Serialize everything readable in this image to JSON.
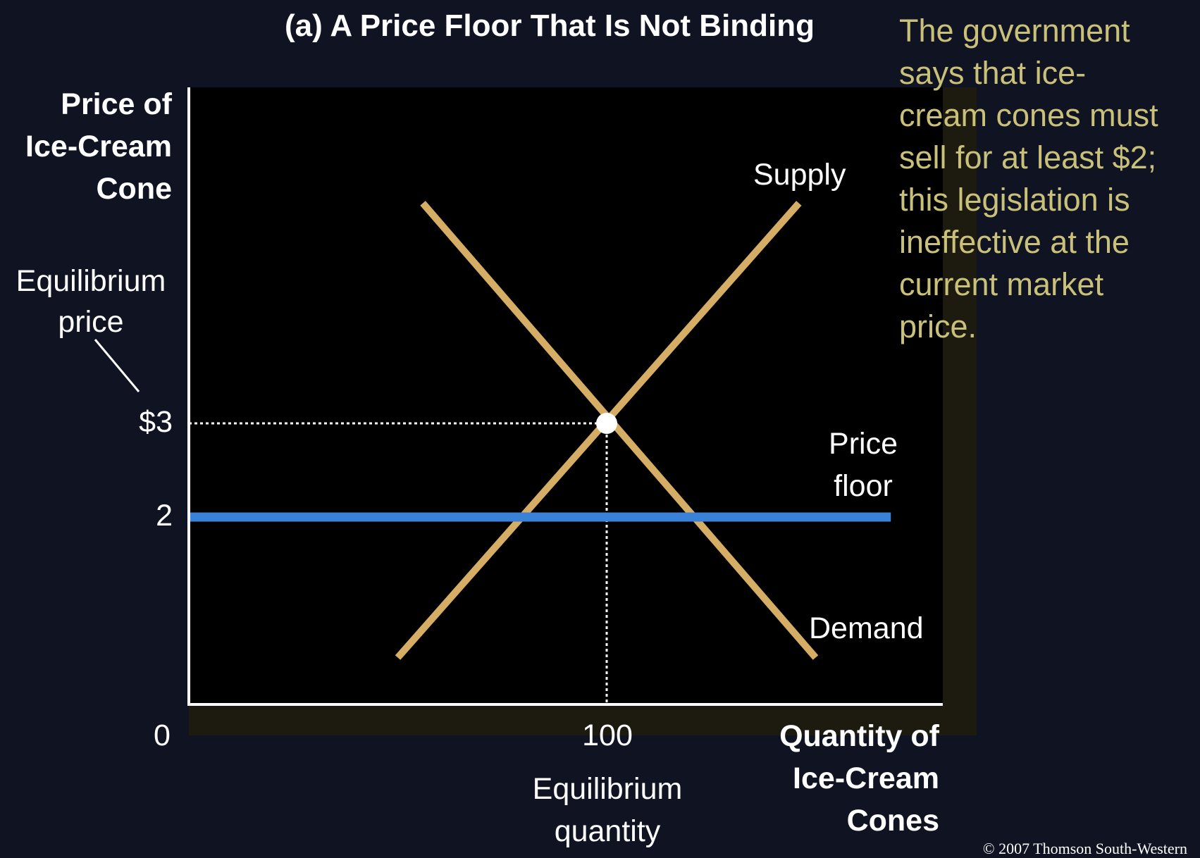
{
  "chart_data": {
    "type": "line",
    "title": "(a) A Price Floor That Is Not Binding",
    "ylabel": "Price of\nIce-Cream\nCone",
    "xlabel": "Quantity of\nIce-Cream\nCones",
    "origin_label": "0",
    "ylim": [
      0,
      4.6
    ],
    "xlim": [
      0,
      202
    ],
    "y_ticks": [
      {
        "value": 3,
        "label": "$3"
      },
      {
        "value": 2,
        "label": "2"
      }
    ],
    "x_ticks": [
      {
        "value": 100,
        "label": "100"
      }
    ],
    "series": [
      {
        "name": "Supply",
        "color": "#d6ad65",
        "points": [
          [
            50,
            0.5
          ],
          [
            146,
            5.35
          ]
        ]
      },
      {
        "name": "Demand",
        "color": "#d6ad65",
        "points": [
          [
            56,
            5.35
          ],
          [
            150,
            0.5
          ]
        ]
      },
      {
        "name": "Price floor",
        "color": "#3a82d8",
        "points": [
          [
            0,
            2
          ],
          [
            168,
            2
          ]
        ]
      }
    ],
    "equilibrium": {
      "x": 100,
      "y": 3
    },
    "annotations": {
      "equilibrium_price": "Equilibrium\nprice",
      "equilibrium_quantity": "Equilibrium\nquantity",
      "supply_label": "Supply",
      "demand_label": "Demand",
      "price_floor_label": "Price\nfloor"
    },
    "note": "The government\nsays that ice-\ncream cones must\nsell for at least $2;\nthis legislation is\nineffective at the\ncurrent market\nprice.",
    "grid": false,
    "legend": "none"
  },
  "copyright": "© 2007 Thomson South-Western",
  "colors": {
    "background": "#0f1322",
    "plot_background": "#000000",
    "curve": "#d6ad65",
    "price_floor": "#3a82d8",
    "note_text": "#c9c07a"
  }
}
